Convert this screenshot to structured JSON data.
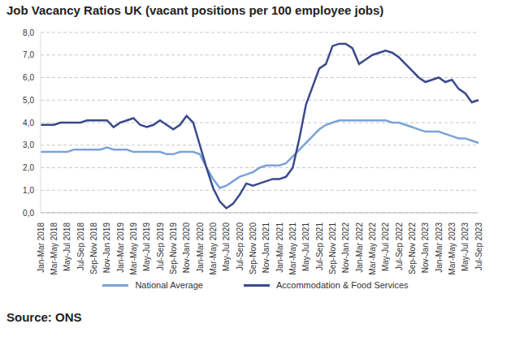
{
  "chart_data": {
    "type": "line",
    "title": "Job Vacancy Ratios UK (vacant positions per 100 employee jobs)",
    "source": "Source: ONS",
    "categories": [
      "Jan-Mar 2018",
      null,
      "Mar-May 2018",
      null,
      "May-Jul 2018",
      null,
      "Jul-Sep 2018",
      null,
      "Sep-Nov 2018",
      null,
      "Nov-Jan 2019",
      null,
      "Jan-Mar 2019",
      null,
      "Mar-May 2019",
      null,
      "May-Jul 2019",
      null,
      "Jul-Sep 2019",
      null,
      "Sep-Nov 2019",
      null,
      "Nov-Jan 2020",
      null,
      "Jan-Mar 2020",
      null,
      "Mar-May 2020",
      null,
      "May-Jul 2020",
      null,
      "Jul-Sep 2020",
      null,
      "Sep-Nov 2020",
      null,
      "Nov-Jan 2021",
      null,
      "Jan-Mar 2021",
      null,
      "Mar-May 2021",
      null,
      "May-Jul 2021",
      null,
      "Jul-Sep 2021",
      null,
      "Sep-Nov 2021",
      null,
      "Nov-Jan 2022",
      null,
      "Jan-Mar 2022",
      null,
      "Mar-May 2022",
      null,
      "May-Jul 2022",
      null,
      "Jul-Sep 2022",
      null,
      "Sep-Nov 2022",
      null,
      "Nov-Jan 2023",
      null,
      "Jan-Mar 2023",
      null,
      "Mar-May 2023",
      null,
      "May-Jul 2023",
      null,
      "Jul-Sep 2023"
    ],
    "series": [
      {
        "name": "National Average",
        "color": "#7aa3d6",
        "values": [
          2.7,
          2.7,
          2.7,
          2.7,
          2.7,
          2.8,
          2.8,
          2.8,
          2.8,
          2.8,
          2.9,
          2.8,
          2.8,
          2.8,
          2.7,
          2.7,
          2.7,
          2.7,
          2.7,
          2.6,
          2.6,
          2.7,
          2.7,
          2.7,
          2.6,
          2.0,
          1.5,
          1.1,
          1.2,
          1.4,
          1.6,
          1.7,
          1.8,
          2.0,
          2.1,
          2.1,
          2.1,
          2.2,
          2.5,
          2.8,
          3.1,
          3.4,
          3.7,
          3.9,
          4.0,
          4.1,
          4.1,
          4.1,
          4.1,
          4.1,
          4.1,
          4.1,
          4.1,
          4.0,
          4.0,
          3.9,
          3.8,
          3.7,
          3.6,
          3.6,
          3.6,
          3.5,
          3.4,
          3.3,
          3.3,
          3.2,
          3.1
        ]
      },
      {
        "name": "Accommodation & Food Services",
        "color": "#3a4a8c",
        "values": [
          3.9,
          3.9,
          3.9,
          4.0,
          4.0,
          4.0,
          4.0,
          4.1,
          4.1,
          4.1,
          4.1,
          3.8,
          4.0,
          4.1,
          4.2,
          3.9,
          3.8,
          3.9,
          4.1,
          3.9,
          3.7,
          3.9,
          4.3,
          4.0,
          3.0,
          2.0,
          1.1,
          0.5,
          0.2,
          0.4,
          0.8,
          1.3,
          1.2,
          1.3,
          1.4,
          1.5,
          1.5,
          1.6,
          2.0,
          3.3,
          4.8,
          5.6,
          6.4,
          6.6,
          7.4,
          7.5,
          7.5,
          7.3,
          6.6,
          6.8,
          7.0,
          7.1,
          7.2,
          7.1,
          6.9,
          6.6,
          6.3,
          6.0,
          5.8,
          5.9,
          6.0,
          5.8,
          5.9,
          5.5,
          5.3,
          4.9,
          5.0
        ]
      }
    ],
    "ylim": [
      0,
      8
    ],
    "yticks": [
      {
        "value": 0,
        "label": "0,0"
      },
      {
        "value": 1,
        "label": "1,0"
      },
      {
        "value": 2,
        "label": "2,0"
      },
      {
        "value": 3,
        "label": "3,0"
      },
      {
        "value": 4,
        "label": "4,0"
      },
      {
        "value": 5,
        "label": "5,0"
      },
      {
        "value": 6,
        "label": "6,0"
      },
      {
        "value": 7,
        "label": "7,0"
      },
      {
        "value": 8,
        "label": "8,0"
      }
    ],
    "grid": true,
    "legend": "bottom"
  }
}
